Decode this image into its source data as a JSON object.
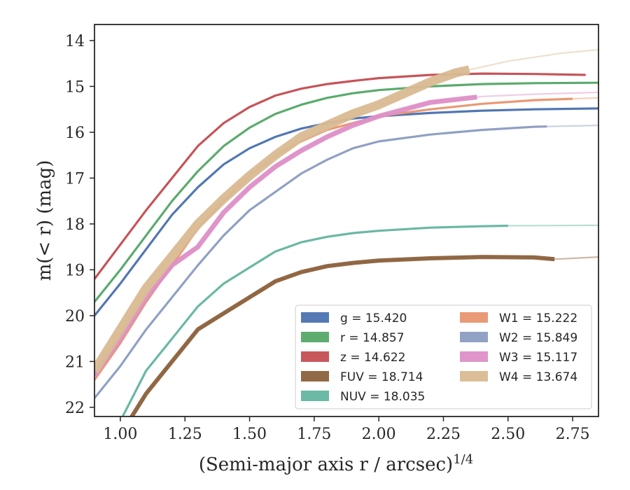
{
  "chart_data": {
    "type": "line",
    "xlabel": "(Semi-major axis r / arcsec)",
    "xlabel_exponent": "1/4",
    "ylabel": "m(< r) (mag)",
    "xlim": [
      0.9,
      2.85
    ],
    "ylim": [
      22.2,
      13.65
    ],
    "y_inverted": true,
    "grid": false,
    "legend_placement": "lower-right",
    "xticks": [
      "1.00",
      "1.25",
      "1.50",
      "1.75",
      "2.00",
      "2.25",
      "2.50",
      "2.75"
    ],
    "yticks": [
      "14",
      "15",
      "16",
      "17",
      "18",
      "19",
      "20",
      "21",
      "22"
    ],
    "series": [
      {
        "name": "g",
        "legend_label": "g = 15.420",
        "color": "#4c72b0",
        "x": [
          0.9,
          1.0,
          1.1,
          1.2,
          1.3,
          1.4,
          1.5,
          1.6,
          1.7,
          1.8,
          1.9,
          2.0,
          2.2,
          2.4,
          2.6,
          2.85
        ],
        "y": [
          20.0,
          19.3,
          18.55,
          17.8,
          17.2,
          16.7,
          16.35,
          16.1,
          15.92,
          15.8,
          15.7,
          15.65,
          15.58,
          15.53,
          15.5,
          15.48
        ],
        "band_end": 2.85
      },
      {
        "name": "r",
        "legend_label": "r = 14.857",
        "color": "#55a868",
        "x": [
          0.9,
          1.0,
          1.1,
          1.2,
          1.3,
          1.4,
          1.5,
          1.6,
          1.7,
          1.8,
          1.9,
          2.0,
          2.2,
          2.4,
          2.6,
          2.85
        ],
        "y": [
          19.7,
          19.0,
          18.25,
          17.5,
          16.85,
          16.3,
          15.9,
          15.6,
          15.4,
          15.25,
          15.15,
          15.08,
          15.0,
          14.95,
          14.93,
          14.92
        ],
        "band_end": 2.85
      },
      {
        "name": "z",
        "legend_label": "z = 14.622",
        "color": "#c44e52",
        "x": [
          0.9,
          1.0,
          1.1,
          1.2,
          1.3,
          1.4,
          1.5,
          1.6,
          1.7,
          1.8,
          1.9,
          2.0,
          2.2,
          2.4,
          2.6,
          2.8
        ],
        "y": [
          19.2,
          18.45,
          17.7,
          17.0,
          16.3,
          15.8,
          15.45,
          15.2,
          15.05,
          14.95,
          14.88,
          14.82,
          14.75,
          14.72,
          14.73,
          14.75
        ],
        "band_end": 2.8
      },
      {
        "name": "FUV",
        "legend_label": "FUV = 18.714",
        "color": "#8c613c",
        "x": [
          1.0,
          1.1,
          1.2,
          1.3,
          1.4,
          1.5,
          1.6,
          1.7,
          1.8,
          1.9,
          2.0,
          2.2,
          2.4,
          2.6,
          2.68,
          2.85
        ],
        "y": [
          22.6,
          21.7,
          21.0,
          20.3,
          19.95,
          19.6,
          19.25,
          19.05,
          18.92,
          18.85,
          18.8,
          18.75,
          18.72,
          18.73,
          18.77,
          18.72
        ],
        "band_end": 2.68
      },
      {
        "name": "NUV",
        "legend_label": "NUV = 18.035",
        "color": "#64b5a0",
        "x": [
          0.9,
          1.0,
          1.1,
          1.2,
          1.3,
          1.4,
          1.5,
          1.6,
          1.7,
          1.8,
          1.9,
          2.0,
          2.2,
          2.4,
          2.5,
          2.85
        ],
        "y": [
          23.5,
          22.3,
          21.2,
          20.5,
          19.8,
          19.3,
          18.95,
          18.6,
          18.4,
          18.28,
          18.2,
          18.15,
          18.08,
          18.05,
          18.04,
          18.03
        ],
        "band_end": 2.5
      },
      {
        "name": "W1",
        "legend_label": "W1 = 15.222",
        "color": "#e8956f",
        "x": [
          0.9,
          1.0,
          1.1,
          1.2,
          1.3,
          1.4,
          1.5,
          1.6,
          1.7,
          1.8,
          1.9,
          2.0,
          2.2,
          2.4,
          2.6,
          2.85
        ],
        "y": [
          21.4,
          20.6,
          19.7,
          18.9,
          18.1,
          17.5,
          16.95,
          16.5,
          16.2,
          15.95,
          15.8,
          15.65,
          15.5,
          15.38,
          15.3,
          15.25
        ],
        "band_end": 2.75
      },
      {
        "name": "W2",
        "legend_label": "W2 = 15.849",
        "color": "#8c9dc2",
        "x": [
          0.9,
          1.0,
          1.1,
          1.2,
          1.3,
          1.4,
          1.5,
          1.6,
          1.7,
          1.8,
          1.9,
          2.0,
          2.2,
          2.4,
          2.6,
          2.85
        ],
        "y": [
          21.8,
          21.1,
          20.3,
          19.6,
          18.9,
          18.25,
          17.7,
          17.3,
          16.9,
          16.6,
          16.35,
          16.2,
          16.05,
          15.95,
          15.88,
          15.85
        ],
        "band_end": 2.65
      },
      {
        "name": "W3",
        "legend_label": "W3 = 15.117",
        "color": "#dd8fc7",
        "x": [
          0.9,
          1.0,
          1.1,
          1.2,
          1.3,
          1.4,
          1.5,
          1.6,
          1.7,
          1.8,
          1.9,
          2.0,
          2.2,
          2.4,
          2.6,
          2.85
        ],
        "y": [
          21.3,
          20.5,
          19.6,
          18.9,
          18.5,
          17.75,
          17.2,
          16.75,
          16.4,
          16.1,
          15.85,
          15.65,
          15.35,
          15.22,
          15.17,
          15.13
        ],
        "band_end": 2.38
      },
      {
        "name": "W4",
        "legend_label": "W4 = 13.674",
        "color": "#d9bb92",
        "x": [
          0.9,
          1.0,
          1.1,
          1.2,
          1.3,
          1.4,
          1.5,
          1.6,
          1.7,
          1.8,
          1.9,
          2.0,
          2.2,
          2.3,
          2.5,
          2.7,
          2.85
        ],
        "y": [
          21.2,
          20.3,
          19.4,
          18.7,
          18.0,
          17.45,
          16.95,
          16.5,
          16.1,
          15.85,
          15.6,
          15.4,
          14.9,
          14.7,
          14.45,
          14.28,
          14.2
        ],
        "band_end": 2.35
      }
    ]
  }
}
